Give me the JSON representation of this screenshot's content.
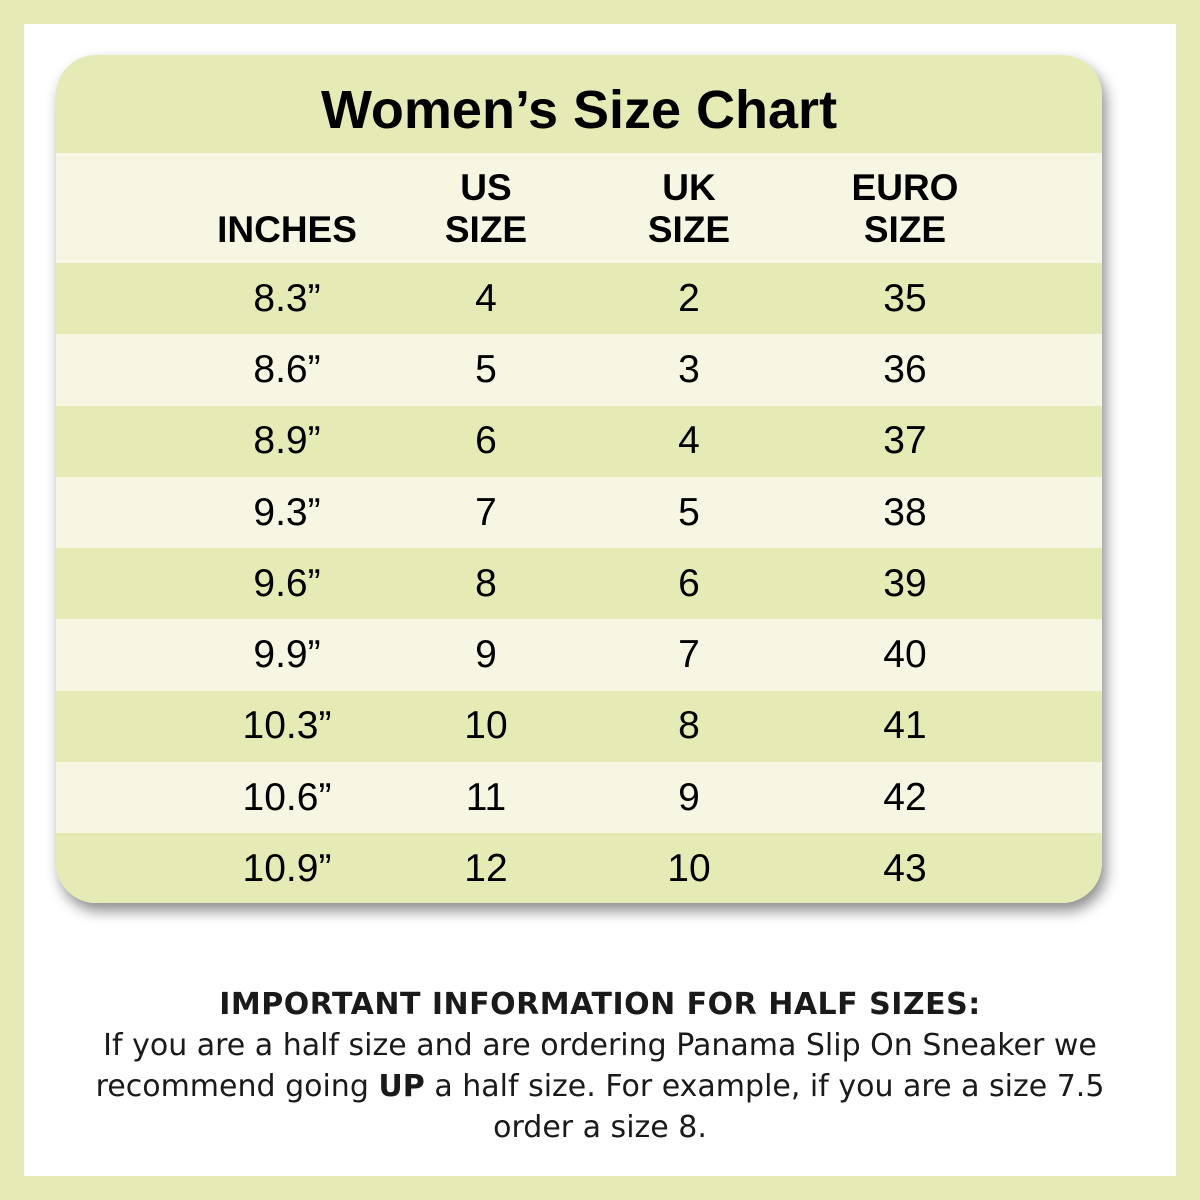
{
  "title": "Women’s Size Chart",
  "columns": [
    {
      "lines": [
        "",
        "INCHES"
      ]
    },
    {
      "lines": [
        "US",
        "SIZE"
      ]
    },
    {
      "lines": [
        "UK",
        "SIZE"
      ]
    },
    {
      "lines": [
        "EURO",
        "SIZE"
      ]
    }
  ],
  "rows": [
    [
      "8.3”",
      "4",
      "2",
      "35"
    ],
    [
      "8.6”",
      "5",
      "3",
      "36"
    ],
    [
      "8.9”",
      "6",
      "4",
      "37"
    ],
    [
      "9.3”",
      "7",
      "5",
      "38"
    ],
    [
      "9.6”",
      "8",
      "6",
      "39"
    ],
    [
      "9.9”",
      "9",
      "7",
      "40"
    ],
    [
      "10.3”",
      "10",
      "8",
      "41"
    ],
    [
      "10.6”",
      "11",
      "9",
      "42"
    ],
    [
      "10.9”",
      "12",
      "10",
      "43"
    ]
  ],
  "info": {
    "heading": "IMPORTANT INFORMATION FOR HALF SIZES:",
    "text_before": "If you are a half size and are ordering Panama Slip On Sneaker we recommend going",
    "emphasis": "UP",
    "text_after": "a half size. For example, if you are a size 7.5 order a size 8."
  },
  "colors": {
    "background": "#e6ebb5",
    "light_row": "#f7f6e3",
    "text": "#000000"
  }
}
